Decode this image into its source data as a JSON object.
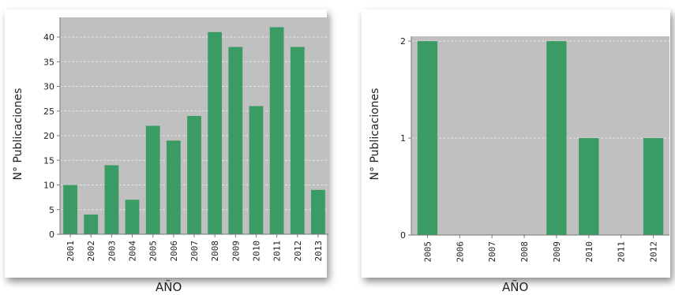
{
  "chart_data": [
    {
      "type": "bar",
      "categories": [
        "2001",
        "2002",
        "2003",
        "2004",
        "2005",
        "2006",
        "2007",
        "2008",
        "2009",
        "2010",
        "2011",
        "2012",
        "2013"
      ],
      "values": [
        10,
        4,
        14,
        7,
        22,
        19,
        24,
        41,
        38,
        26,
        42,
        38,
        9
      ],
      "xlabel": "AÑO",
      "ylabel": "N° Publicaciones",
      "ylim": [
        0,
        44
      ],
      "yticks": [
        0,
        5,
        10,
        15,
        20,
        25,
        30,
        35,
        40
      ],
      "grid": true,
      "bar_color": "#3a9b64",
      "plot_background": "#c0c0c0"
    },
    {
      "type": "bar",
      "categories": [
        "2005",
        "2006",
        "2007",
        "2008",
        "2009",
        "2010",
        "2011",
        "2012"
      ],
      "values": [
        2,
        0,
        0,
        0,
        2,
        1,
        0,
        1
      ],
      "xlabel": "AÑO",
      "ylabel": "N° Publicaciones",
      "ylim": [
        0,
        2.05
      ],
      "yticks": [
        0,
        1,
        2
      ],
      "grid": true,
      "bar_color": "#3a9b64",
      "plot_background": "#c0c0c0"
    }
  ]
}
